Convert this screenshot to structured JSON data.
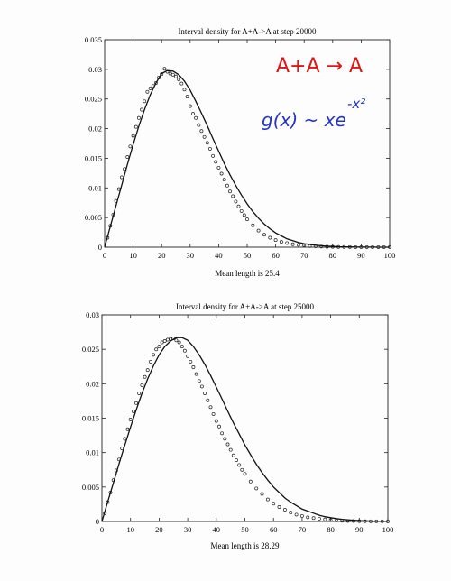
{
  "annotations": {
    "reaction": "A+A → A",
    "formula": "g(x) ~ xe",
    "formula_exponent": "-x²",
    "red": "#e01515",
    "blue": "#2233cc"
  },
  "chart_data": [
    {
      "type": "scatter",
      "title": "Interval density for A+A->A at step  20000",
      "xlabel": "Mean length is 25.4",
      "ylabel": "",
      "xlim": [
        0,
        100
      ],
      "ylim": [
        0,
        0.035
      ],
      "x_ticks": [
        0,
        10,
        20,
        30,
        40,
        50,
        60,
        70,
        80,
        90,
        100
      ],
      "y_ticks": [
        0,
        0.005,
        0.01,
        0.015,
        0.02,
        0.025,
        0.03,
        0.035
      ],
      "y_tick_labels": [
        "0",
        "0.005",
        "0.01",
        "0.015",
        "0.02",
        "0.025",
        "0.03",
        "0.035"
      ],
      "grid": false,
      "legend": "none",
      "series": [
        {
          "kind": "points",
          "x": [
            1,
            2,
            3,
            4,
            5,
            6,
            7,
            8,
            9,
            10,
            11,
            12,
            13,
            14,
            15,
            16,
            17,
            18,
            19,
            20,
            21,
            22,
            23,
            24,
            25,
            26,
            27,
            28,
            29,
            30,
            31,
            32,
            33,
            34,
            35,
            36,
            37,
            38,
            39,
            40,
            41,
            42,
            43,
            44,
            45,
            46,
            47,
            48,
            49,
            50,
            52,
            54,
            56,
            58,
            60,
            62,
            64,
            66,
            68,
            70,
            72,
            74,
            76,
            78,
            80,
            82,
            84,
            86,
            88,
            90,
            92,
            94,
            96,
            98,
            100
          ],
          "y": [
            0.0016,
            0.0036,
            0.0055,
            0.0078,
            0.0098,
            0.0118,
            0.0132,
            0.0152,
            0.017,
            0.0188,
            0.0203,
            0.0218,
            0.0232,
            0.0246,
            0.0262,
            0.0268,
            0.0272,
            0.0277,
            0.0286,
            0.0292,
            0.0301,
            0.0296,
            0.0293,
            0.0291,
            0.0288,
            0.0283,
            0.0276,
            0.0266,
            0.0254,
            0.0238,
            0.0225,
            0.0218,
            0.0206,
            0.0196,
            0.0186,
            0.0176,
            0.0166,
            0.0154,
            0.0144,
            0.0134,
            0.0124,
            0.0114,
            0.0104,
            0.0094,
            0.0086,
            0.0077,
            0.0069,
            0.0061,
            0.0054,
            0.0047,
            0.0037,
            0.0028,
            0.0021,
            0.0016,
            0.0012,
            0.0009,
            0.0007,
            0.0005,
            0.0004,
            0.0003,
            0.0002,
            0.00015,
            0.0001,
            8e-05,
            6e-05,
            5e-05,
            4e-05,
            3e-05,
            2e-05,
            2e-05,
            1e-05,
            1e-05,
            1e-05,
            1e-05,
            1e-05
          ]
        },
        {
          "kind": "line",
          "x": [
            0,
            2,
            4,
            6,
            8,
            10,
            12,
            14,
            16,
            18,
            20,
            22,
            24,
            26,
            28,
            30,
            32,
            34,
            36,
            38,
            40,
            42,
            44,
            46,
            48,
            50,
            52,
            54,
            56,
            58,
            60,
            62,
            64,
            66,
            68,
            70,
            72,
            74,
            76,
            78,
            80,
            82,
            84,
            86,
            88,
            90,
            92,
            94,
            96,
            98,
            100
          ],
          "y": [
            0,
            0.0035,
            0.007,
            0.0105,
            0.014,
            0.0173,
            0.0204,
            0.0232,
            0.0257,
            0.0277,
            0.0293,
            0.0298,
            0.0297,
            0.0291,
            0.028,
            0.0265,
            0.0246,
            0.0226,
            0.0205,
            0.0183,
            0.0162,
            0.0141,
            0.0122,
            0.0104,
            0.0088,
            0.0073,
            0.006,
            0.0049,
            0.0039,
            0.0031,
            0.0024,
            0.0019,
            0.0014,
            0.0011,
            0.0008,
            0.0006,
            0.00045,
            0.00033,
            0.00024,
            0.00017,
            0.00012,
            8e-05,
            6e-05,
            4e-05,
            3e-05,
            2e-05,
            1e-05,
            1e-05,
            0,
            0,
            0
          ]
        }
      ]
    },
    {
      "type": "scatter",
      "title": "Interval density for A+A->A at step  25000",
      "xlabel": "Mean length is 28.29",
      "ylabel": "",
      "xlim": [
        0,
        100
      ],
      "ylim": [
        0,
        0.03
      ],
      "x_ticks": [
        0,
        10,
        20,
        30,
        40,
        50,
        60,
        70,
        80,
        90,
        100
      ],
      "y_ticks": [
        0,
        0.005,
        0.01,
        0.015,
        0.02,
        0.025,
        0.03
      ],
      "y_tick_labels": [
        "0",
        "0.005",
        "0.01",
        "0.015",
        "0.02",
        "0.025",
        "0.03"
      ],
      "grid": false,
      "legend": "none",
      "series": [
        {
          "kind": "points",
          "x": [
            1,
            2,
            3,
            4,
            5,
            6,
            7,
            8,
            9,
            10,
            11,
            12,
            13,
            14,
            15,
            16,
            17,
            18,
            19,
            20,
            21,
            22,
            23,
            24,
            25,
            26,
            27,
            28,
            29,
            30,
            31,
            32,
            33,
            34,
            35,
            36,
            37,
            38,
            39,
            40,
            41,
            42,
            43,
            44,
            45,
            46,
            47,
            48,
            49,
            50,
            52,
            54,
            56,
            58,
            60,
            62,
            64,
            66,
            68,
            70,
            72,
            74,
            76,
            78,
            80,
            82,
            84,
            86,
            88,
            90,
            92,
            94,
            96,
            98,
            100
          ],
          "y": [
            0.0012,
            0.0028,
            0.0042,
            0.006,
            0.0074,
            0.009,
            0.0106,
            0.012,
            0.0134,
            0.0148,
            0.016,
            0.0172,
            0.0186,
            0.0198,
            0.021,
            0.022,
            0.0232,
            0.0242,
            0.025,
            0.0254,
            0.026,
            0.0262,
            0.0264,
            0.0265,
            0.0266,
            0.0263,
            0.026,
            0.0254,
            0.0248,
            0.024,
            0.0232,
            0.0224,
            0.0214,
            0.0204,
            0.0196,
            0.0186,
            0.0176,
            0.0166,
            0.0156,
            0.0146,
            0.0138,
            0.0128,
            0.012,
            0.0112,
            0.0104,
            0.0096,
            0.0089,
            0.0082,
            0.0075,
            0.0069,
            0.0058,
            0.0048,
            0.004,
            0.0032,
            0.0026,
            0.0021,
            0.0017,
            0.0013,
            0.001,
            0.0008,
            0.0006,
            0.0005,
            0.0004,
            0.0003,
            0.0002,
            0.00015,
            0.0001,
            8e-05,
            6e-05,
            5e-05,
            4e-05,
            3e-05,
            2e-05,
            2e-05,
            1e-05
          ]
        },
        {
          "kind": "line",
          "x": [
            0,
            2,
            4,
            6,
            8,
            10,
            12,
            14,
            16,
            18,
            20,
            22,
            24,
            26,
            28,
            30,
            32,
            34,
            36,
            38,
            40,
            42,
            44,
            46,
            48,
            50,
            52,
            54,
            56,
            58,
            60,
            62,
            64,
            66,
            68,
            70,
            72,
            74,
            76,
            78,
            80,
            82,
            84,
            86,
            88,
            90,
            92,
            94,
            96,
            98,
            100
          ],
          "y": [
            0,
            0.0028,
            0.0056,
            0.0084,
            0.0111,
            0.0137,
            0.0162,
            0.0186,
            0.0207,
            0.0226,
            0.0242,
            0.0254,
            0.0262,
            0.0267,
            0.0267,
            0.0263,
            0.0254,
            0.0242,
            0.0228,
            0.0212,
            0.0195,
            0.0178,
            0.016,
            0.0143,
            0.0127,
            0.0111,
            0.0097,
            0.0083,
            0.0071,
            0.006,
            0.005,
            0.0042,
            0.0034,
            0.0028,
            0.0023,
            0.0018,
            0.0015,
            0.0012,
            0.0009,
            0.0007,
            0.00055,
            0.00042,
            0.00032,
            0.00024,
            0.00018,
            0.00013,
            0.0001,
            7e-05,
            5e-05,
            4e-05,
            3e-05
          ]
        }
      ]
    }
  ]
}
